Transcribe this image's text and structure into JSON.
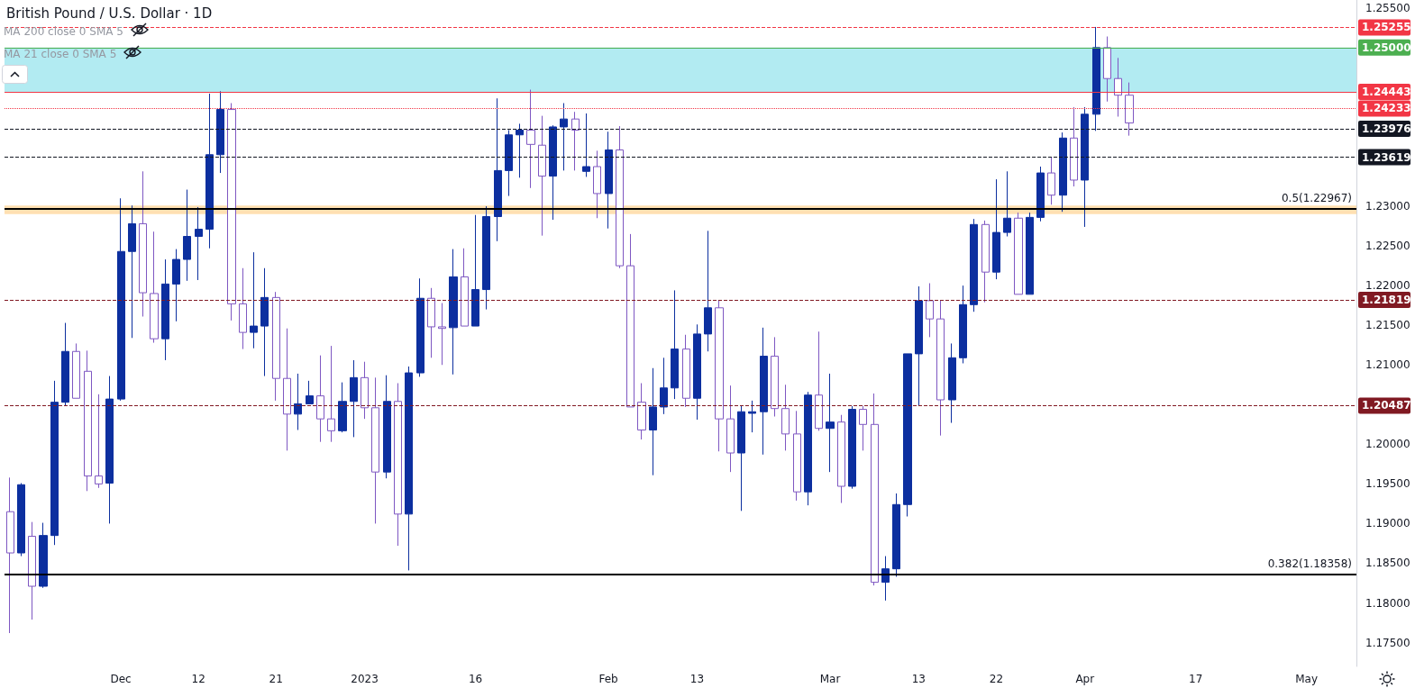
{
  "chart_data": {
    "type": "candlestick",
    "title": "British Pound / U.S. Dollar · 1D",
    "annotations": [
      "MA 200 close 0 SMA 5",
      "MA 21 close 0 SMA 5"
    ],
    "categories": [
      null,
      null,
      null,
      null,
      null,
      null,
      null,
      null,
      null,
      null,
      "Dec",
      null,
      null,
      null,
      null,
      null,
      null,
      "12",
      null,
      null,
      null,
      null,
      null,
      null,
      "21",
      null,
      null,
      null,
      null,
      null,
      null,
      null,
      "2023",
      null,
      null,
      null,
      null,
      null,
      null,
      null,
      null,
      null,
      "16",
      null,
      null,
      null,
      null,
      null,
      null,
      null,
      null,
      null,
      null,
      null,
      "Feb",
      null,
      null,
      null,
      null,
      null,
      null,
      null,
      "13",
      null,
      null,
      null,
      null,
      null,
      null,
      null,
      null,
      null,
      null,
      null,
      "Mar",
      null,
      null,
      null,
      null,
      null,
      null,
      null,
      "13",
      null,
      null,
      null,
      null,
      null,
      null,
      "22",
      null,
      null,
      null,
      null,
      null,
      null,
      null,
      "Apr",
      null,
      null,
      null,
      null,
      null,
      null,
      null,
      null,
      null,
      "17",
      null,
      null,
      null,
      null,
      null,
      null,
      null,
      null,
      null,
      "May",
      null,
      null,
      null,
      null
    ],
    "colors": [
      "#7e57c2",
      "#0c2f9f",
      "#7e57c2",
      "#0c2f9f",
      "#0c2f9f",
      "#0c2f9f",
      "#7e57c2",
      "#7e57c2",
      "#7e57c2",
      "#0c2f9f",
      "#0c2f9f",
      "#0c2f9f",
      "#7e57c2",
      "#7e57c2",
      "#0c2f9f",
      "#0c2f9f",
      "#0c2f9f",
      "#0c2f9f",
      "#0c2f9f",
      "#0c2f9f",
      "#7e57c2",
      "#7e57c2",
      "#0c2f9f",
      "#0c2f9f",
      "#7e57c2",
      "#7e57c2",
      "#0c2f9f",
      "#0c2f9f",
      "#7e57c2",
      "#7e57c2",
      "#0c2f9f",
      "#0c2f9f",
      "#7e57c2",
      "#7e57c2",
      "#0c2f9f",
      "#7e57c2",
      "#0c2f9f",
      "#0c2f9f",
      "#7e57c2",
      "#7e57c2",
      "#0c2f9f",
      "#7e57c2",
      "#0c2f9f",
      "#0c2f9f",
      "#0c2f9f",
      "#0c2f9f",
      "#0c2f9f",
      "#7e57c2",
      "#7e57c2",
      "#0c2f9f",
      "#0c2f9f",
      "#7e57c2",
      "#0c2f9f",
      "#7e57c2",
      "#0c2f9f",
      "#7e57c2",
      "#7e57c2",
      "#7e57c2",
      "#0c2f9f",
      "#0c2f9f",
      "#0c2f9f",
      "#7e57c2",
      "#0c2f9f",
      "#0c2f9f",
      "#7e57c2",
      "#7e57c2",
      "#0c2f9f",
      "#0c2f9f",
      "#0c2f9f",
      "#7e57c2",
      "#7e57c2",
      "#7e57c2",
      "#0c2f9f",
      "#7e57c2",
      "#0c2f9f",
      "#7e57c2",
      "#0c2f9f",
      "#7e57c2",
      "#7e57c2",
      "#0c2f9f",
      "#0c2f9f",
      "#0c2f9f",
      "#0c2f9f",
      "#7e57c2",
      "#7e57c2",
      "#0c2f9f",
      "#0c2f9f",
      "#0c2f9f",
      "#7e57c2",
      "#0c2f9f",
      "#0c2f9f",
      "#7e57c2",
      "#0c2f9f",
      "#0c2f9f",
      "#7e57c2",
      "#0c2f9f",
      "#7e57c2",
      "#0c2f9f",
      "#0c2f9f",
      "#7e57c2",
      "#7e57c2",
      "#7e57c2",
      null,
      null,
      null,
      null,
      null,
      null,
      null,
      null,
      null,
      null,
      null,
      null,
      null,
      null,
      null,
      null,
      null,
      null,
      null,
      null
    ],
    "ohlc": [
      [
        1.1915,
        1.1958,
        1.1762,
        1.1863
      ],
      [
        1.1863,
        1.1951,
        1.1859,
        1.1949
      ],
      [
        1.1884,
        1.1902,
        1.1779,
        1.1821
      ],
      [
        1.1821,
        1.1901,
        1.1819,
        1.1885
      ],
      [
        1.1885,
        1.208,
        1.1873,
        1.2053
      ],
      [
        1.2053,
        1.2153,
        1.2049,
        1.2117
      ],
      [
        1.2117,
        1.2127,
        1.2058,
        1.2058
      ],
      [
        1.2092,
        1.2118,
        1.1941,
        1.196
      ],
      [
        1.196,
        1.2063,
        1.1945,
        1.195
      ],
      [
        1.1951,
        1.2086,
        1.19,
        1.2057
      ],
      [
        1.2057,
        1.231,
        1.2055,
        1.2243
      ],
      [
        1.2243,
        1.2301,
        1.2134,
        1.2278
      ],
      [
        1.2278,
        1.2344,
        1.2161,
        1.2191
      ],
      [
        1.219,
        1.2268,
        1.2128,
        1.2133
      ],
      [
        1.2133,
        1.2233,
        1.2106,
        1.2202
      ],
      [
        1.2202,
        1.2246,
        1.2155,
        1.2233
      ],
      [
        1.2233,
        1.2321,
        1.2206,
        1.2262
      ],
      [
        1.2262,
        1.2299,
        1.2207,
        1.2271
      ],
      [
        1.2271,
        1.2442,
        1.2247,
        1.2365
      ],
      [
        1.2365,
        1.2445,
        1.2342,
        1.2422
      ],
      [
        1.2422,
        1.243,
        1.2156,
        1.2177
      ],
      [
        1.2177,
        1.2222,
        1.212,
        1.2141
      ],
      [
        1.2141,
        1.2242,
        1.2121,
        1.2149
      ],
      [
        1.2149,
        1.2222,
        1.2086,
        1.2185
      ],
      [
        1.2185,
        1.2192,
        1.2055,
        1.2083
      ],
      [
        1.2083,
        1.2146,
        1.1992,
        1.2038
      ],
      [
        1.2038,
        1.2089,
        1.2018,
        1.2051
      ],
      [
        1.2051,
        1.208,
        1.2051,
        1.2061
      ],
      [
        1.2061,
        1.2112,
        1.2003,
        1.2032
      ],
      [
        1.2032,
        1.2124,
        1.2003,
        1.2017
      ],
      [
        1.2017,
        1.2078,
        1.2015,
        1.2054
      ],
      [
        1.2054,
        1.2106,
        1.2009,
        1.2084
      ],
      [
        1.2084,
        1.2104,
        1.2032,
        1.2046
      ],
      [
        1.2046,
        1.2084,
        1.19,
        1.1965
      ],
      [
        1.1965,
        1.2087,
        1.1957,
        1.2054
      ],
      [
        1.2054,
        1.2077,
        1.1872,
        1.1912
      ],
      [
        1.1912,
        1.2098,
        1.1841,
        1.209
      ],
      [
        1.209,
        1.2209,
        1.2085,
        1.2184
      ],
      [
        1.2184,
        1.2197,
        1.2109,
        1.2148
      ],
      [
        1.2148,
        1.2178,
        1.21,
        1.2146
      ],
      [
        1.2147,
        1.2246,
        1.2088,
        1.2211
      ],
      [
        1.2211,
        1.2247,
        1.2149,
        1.2149
      ],
      [
        1.2149,
        1.2289,
        1.2149,
        1.2195
      ],
      [
        1.2195,
        1.23,
        1.217,
        1.2287
      ],
      [
        1.2287,
        1.2436,
        1.2256,
        1.2345
      ],
      [
        1.2345,
        1.2396,
        1.2313,
        1.239
      ],
      [
        1.239,
        1.2404,
        1.2336,
        1.2396
      ],
      [
        1.2396,
        1.2447,
        1.2323,
        1.2378
      ],
      [
        1.2377,
        1.2414,
        1.2263,
        1.2338
      ],
      [
        1.2338,
        1.2402,
        1.2283,
        1.24
      ],
      [
        1.24,
        1.243,
        1.2345,
        1.241
      ],
      [
        1.241,
        1.2419,
        1.2345,
        1.2396
      ],
      [
        1.2344,
        1.2417,
        1.2337,
        1.235
      ],
      [
        1.235,
        1.237,
        1.2285,
        1.2316
      ],
      [
        1.2316,
        1.2394,
        1.2272,
        1.2371
      ],
      [
        1.2371,
        1.2401,
        1.2222,
        1.2225
      ],
      [
        1.2225,
        1.2265,
        1.2047,
        1.2047
      ],
      [
        1.2053,
        1.2077,
        1.2006,
        1.2018
      ],
      [
        1.2018,
        1.2096,
        1.1961,
        1.2047
      ],
      [
        1.2047,
        1.2109,
        1.2038,
        1.2071
      ],
      [
        1.2071,
        1.2194,
        1.2057,
        1.212
      ],
      [
        1.212,
        1.2138,
        1.2047,
        1.2058
      ],
      [
        1.2058,
        1.2151,
        1.2031,
        1.2139
      ],
      [
        1.2139,
        1.2269,
        1.2117,
        1.2172
      ],
      [
        1.2172,
        1.2182,
        1.1991,
        1.2032
      ],
      [
        1.2032,
        1.2074,
        1.1965,
        1.1989
      ],
      [
        1.1989,
        1.2049,
        1.1916,
        1.2041
      ],
      [
        1.2039,
        1.2055,
        1.2015,
        1.2041
      ],
      [
        1.2041,
        1.2147,
        1.1987,
        1.2111
      ],
      [
        1.2111,
        1.2135,
        1.2035,
        1.2045
      ],
      [
        1.2045,
        1.2075,
        1.1992,
        1.2013
      ],
      [
        1.2013,
        1.2042,
        1.1929,
        1.194
      ],
      [
        1.194,
        1.2066,
        1.1923,
        1.2062
      ],
      [
        1.2062,
        1.2142,
        1.2017,
        1.202
      ],
      [
        1.202,
        1.2089,
        1.1965,
        1.2028
      ],
      [
        1.2028,
        1.2037,
        1.1926,
        1.1947
      ],
      [
        1.1947,
        1.2048,
        1.1944,
        1.2044
      ],
      [
        1.2044,
        1.2048,
        1.1992,
        1.2025
      ],
      [
        1.2025,
        1.2064,
        1.1822,
        1.1826
      ],
      [
        1.1826,
        1.1859,
        1.1803,
        1.1843
      ],
      [
        1.1843,
        1.1938,
        1.1833,
        1.1924
      ],
      [
        1.1924,
        1.2114,
        1.1909,
        1.2114
      ],
      [
        1.2114,
        1.2199,
        1.2048,
        1.2181
      ],
      [
        1.2181,
        1.2203,
        1.2135,
        1.2158
      ],
      [
        1.2158,
        1.2181,
        1.2011,
        1.2056
      ],
      [
        1.2056,
        1.2127,
        1.2027,
        1.2109
      ],
      [
        1.2109,
        1.22,
        1.2102,
        1.2176
      ],
      [
        1.2176,
        1.2284,
        1.2167,
        1.2277
      ],
      [
        1.2277,
        1.2282,
        1.2179,
        1.2217
      ],
      [
        1.2217,
        1.2334,
        1.2208,
        1.2267
      ],
      [
        1.2267,
        1.2344,
        1.2262,
        1.2285
      ],
      [
        1.2285,
        1.2292,
        1.2189,
        1.2189
      ],
      [
        1.2189,
        1.2292,
        1.2189,
        1.2286
      ],
      [
        1.2286,
        1.235,
        1.2281,
        1.2342
      ],
      [
        1.2342,
        1.2362,
        1.2302,
        1.2314
      ],
      [
        1.2314,
        1.2393,
        1.2293,
        1.2386
      ],
      [
        1.2386,
        1.2425,
        1.2325,
        1.2333
      ],
      [
        1.2333,
        1.2425,
        1.2274,
        1.2416
      ],
      [
        1.2416,
        1.2526,
        1.2395,
        1.25
      ],
      [
        1.25,
        1.2514,
        1.2432,
        1.2461
      ],
      [
        1.2461,
        1.2487,
        1.2413,
        1.244
      ],
      [
        1.244,
        1.2456,
        1.2389,
        1.2405
      ],
      null,
      null,
      null,
      null,
      null,
      null,
      null,
      null,
      null,
      null,
      null,
      null,
      null,
      null,
      null,
      null,
      null,
      null,
      null,
      null
    ],
    "ylim": [
      1.172,
      1.256
    ],
    "yticks": [
      {
        "value": 1.175,
        "label": "1.17500"
      },
      {
        "value": 1.18,
        "label": "1.18000"
      },
      {
        "value": 1.185,
        "label": "1.18500"
      },
      {
        "value": 1.19,
        "label": "1.19000"
      },
      {
        "value": 1.195,
        "label": "1.19500"
      },
      {
        "value": 1.2,
        "label": "1.20000"
      },
      {
        "value": 1.21,
        "label": "1.21000"
      },
      {
        "value": 1.215,
        "label": "1.21500"
      },
      {
        "value": 1.22,
        "label": "1.22000"
      },
      {
        "value": 1.225,
        "label": "1.22500"
      },
      {
        "value": 1.23,
        "label": "1.23000"
      },
      {
        "value": 1.255,
        "label": "1.25500"
      }
    ],
    "ref_lines": [
      {
        "axis": "y",
        "value": 1.25255,
        "label": "1.25255",
        "color": "#f23645",
        "line_style": "dashed"
      },
      {
        "axis": "y",
        "value": 1.25,
        "label": "1.25000",
        "color": "#4caf50",
        "line_style": "solid"
      },
      {
        "axis": "y",
        "value": 1.24443,
        "label": "1.24443",
        "color": "#f23645",
        "line_style": "solid"
      },
      {
        "axis": "y",
        "value": 1.24233,
        "label": "1.24233",
        "color": "#f23645",
        "line_style": "dotted"
      },
      {
        "axis": "y",
        "value": 1.23976,
        "label": "1.23976",
        "color": "#131722",
        "line_style": "dashed"
      },
      {
        "axis": "y",
        "value": 1.23619,
        "label": "1.23619",
        "color": "#131722",
        "line_style": "dashed"
      },
      {
        "axis": "y",
        "value": 1.22967,
        "label": "0.5(1.22967)",
        "color": "#000000",
        "line_style": "solid"
      },
      {
        "axis": "y",
        "value": 1.21819,
        "label": "1.21819",
        "color": "#801922",
        "line_style": "dashed"
      },
      {
        "axis": "y",
        "value": 1.20487,
        "label": "1.20487",
        "color": "#801922",
        "line_style": "dashed"
      },
      {
        "axis": "y",
        "value": 1.18358,
        "label": "0.382(1.18358)",
        "color": "#000000",
        "line_style": "solid"
      }
    ],
    "bands": [
      {
        "axis": "y",
        "from": 1.24443,
        "to": 1.25,
        "color": "#b2ebf2"
      },
      {
        "axis": "y",
        "from": 1.229,
        "to": 1.2301,
        "color": "#ffe0b2"
      }
    ]
  }
}
